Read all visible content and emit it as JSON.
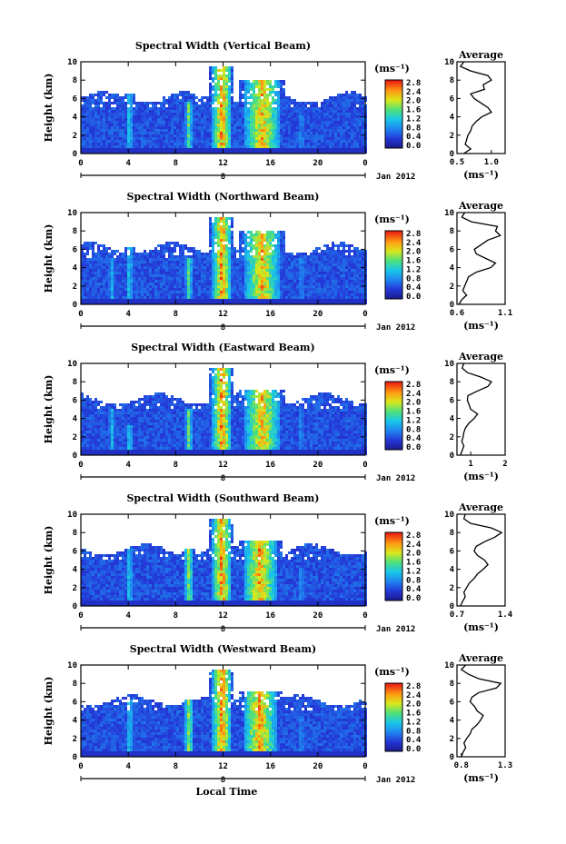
{
  "chart_data": [
    {
      "type": "heatmap",
      "title": "Spectral Width (Vertical Beam)",
      "ylabel": "Height (km)",
      "xticks": [
        "0",
        "4",
        "8",
        "12",
        "16",
        "20",
        "0"
      ],
      "ylim": [
        0,
        10
      ],
      "yticks": [
        "0",
        "2",
        "4",
        "6",
        "8",
        "10"
      ],
      "date_marker": "8",
      "date_label": "Jan 2012",
      "colorbar": {
        "unit": "(ms⁻¹)",
        "ticks": [
          "0.0",
          "0.4",
          "0.8",
          "1.2",
          "1.6",
          "2.0",
          "2.4",
          "2.8"
        ]
      },
      "profile": {
        "title": "Average",
        "xlabel": "(ms⁻¹)",
        "xticks": [
          "0.5",
          "1.0"
        ],
        "xlim": [
          0.5,
          1.2
        ],
        "heights": [
          0,
          0.5,
          1,
          1.5,
          2,
          2.5,
          3,
          3.5,
          4,
          4.5,
          5,
          5.5,
          6,
          6.5,
          7,
          7.5,
          8,
          8.5,
          9,
          9.5,
          10
        ],
        "values": [
          0.6,
          0.7,
          0.62,
          0.64,
          0.66,
          0.7,
          0.72,
          0.78,
          0.86,
          1.0,
          0.95,
          0.85,
          0.75,
          0.7,
          0.9,
          0.88,
          1.0,
          0.95,
          0.7,
          0.55,
          0.6
        ]
      },
      "activity": [
        {
          "t": 4,
          "w": 0.3,
          "top": 6.5,
          "v": 1.4
        },
        {
          "t": 9,
          "w": 0.3,
          "top": 5.5,
          "v": 1.8
        },
        {
          "t": 11.8,
          "w": 0.8,
          "top": 9.5,
          "v": 2.6
        },
        {
          "t": 15.2,
          "w": 1.5,
          "top": 8,
          "v": 2.4
        },
        {
          "t": 18.5,
          "w": 0.3,
          "top": 4,
          "v": 1.0
        }
      ]
    },
    {
      "type": "heatmap",
      "title": "Spectral Width (Northward Beam)",
      "ylabel": "Height (km)",
      "xticks": [
        "0",
        "4",
        "8",
        "12",
        "16",
        "20",
        "0"
      ],
      "ylim": [
        0,
        10
      ],
      "yticks": [
        "0",
        "2",
        "4",
        "6",
        "8",
        "10"
      ],
      "date_marker": "8",
      "date_label": "Jan 2012",
      "colorbar": {
        "unit": "(ms⁻¹)",
        "ticks": [
          "0.0",
          "0.4",
          "0.8",
          "1.2",
          "1.6",
          "2.0",
          "2.4",
          "2.8"
        ]
      },
      "profile": {
        "title": "Average",
        "xlabel": "(ms⁻¹)",
        "xticks": [
          "0.6",
          "1.1"
        ],
        "xlim": [
          0.6,
          1.1
        ],
        "heights": [
          0,
          0.5,
          1,
          1.5,
          2,
          2.5,
          3,
          3.5,
          4,
          4.5,
          5,
          5.5,
          6,
          6.5,
          7,
          7.5,
          8,
          8.5,
          9,
          9.5,
          10
        ],
        "values": [
          0.62,
          0.65,
          0.7,
          0.66,
          0.68,
          0.7,
          0.72,
          0.8,
          0.95,
          1.0,
          0.9,
          0.8,
          0.78,
          0.85,
          0.92,
          1.05,
          1.0,
          1.02,
          0.75,
          0.65,
          0.68
        ]
      },
      "activity": [
        {
          "t": 2.5,
          "w": 0.3,
          "top": 5,
          "v": 1.2
        },
        {
          "t": 4,
          "w": 0.3,
          "top": 6,
          "v": 1.4
        },
        {
          "t": 9,
          "w": 0.3,
          "top": 5,
          "v": 1.8
        },
        {
          "t": 11.8,
          "w": 0.8,
          "top": 9.5,
          "v": 2.6
        },
        {
          "t": 15.2,
          "w": 1.5,
          "top": 8,
          "v": 2.4
        },
        {
          "t": 18.5,
          "w": 0.3,
          "top": 5,
          "v": 1.0
        }
      ]
    },
    {
      "type": "heatmap",
      "title": "Spectral Width (Eastward Beam)",
      "ylabel": "Height (km)",
      "xticks": [
        "0",
        "4",
        "8",
        "12",
        "16",
        "20",
        "0"
      ],
      "ylim": [
        0,
        10
      ],
      "yticks": [
        "0",
        "2",
        "4",
        "6",
        "8",
        "10"
      ],
      "date_marker": "8",
      "date_label": "Jan 2012",
      "colorbar": {
        "unit": "(ms⁻¹)",
        "ticks": [
          "0.0",
          "0.4",
          "0.8",
          "1.2",
          "1.6",
          "2.0",
          "2.4",
          "2.8"
        ]
      },
      "profile": {
        "title": "Average",
        "xlabel": "(ms⁻¹)",
        "xticks": [
          "1",
          "2"
        ],
        "xlim": [
          0.6,
          2.0
        ],
        "heights": [
          0,
          0.5,
          1,
          1.5,
          2,
          2.5,
          3,
          3.5,
          4,
          4.5,
          5,
          5.5,
          6,
          6.5,
          7,
          7.5,
          8,
          8.5,
          9,
          9.5,
          10
        ],
        "values": [
          0.7,
          0.75,
          0.8,
          0.74,
          0.78,
          0.8,
          0.85,
          0.95,
          1.1,
          1.2,
          1.0,
          0.95,
          0.9,
          0.92,
          1.2,
          1.5,
          1.6,
          1.3,
          0.9,
          0.75,
          0.8
        ]
      },
      "activity": [
        {
          "t": 2.5,
          "w": 0.3,
          "top": 5,
          "v": 1.2
        },
        {
          "t": 4,
          "w": 0.3,
          "top": 3,
          "v": 1.4
        },
        {
          "t": 9,
          "w": 0.3,
          "top": 5,
          "v": 1.8
        },
        {
          "t": 11.8,
          "w": 0.8,
          "top": 9.5,
          "v": 2.6
        },
        {
          "t": 15.2,
          "w": 1.5,
          "top": 7,
          "v": 2.4
        },
        {
          "t": 18.5,
          "w": 0.3,
          "top": 5,
          "v": 1.0
        }
      ]
    },
    {
      "type": "heatmap",
      "title": "Spectral Width (Southward Beam)",
      "ylabel": "Height (km)",
      "xticks": [
        "0",
        "4",
        "8",
        "12",
        "16",
        "20",
        "0"
      ],
      "ylim": [
        0,
        10
      ],
      "yticks": [
        "0",
        "2",
        "4",
        "6",
        "8",
        "10"
      ],
      "date_marker": "8",
      "date_label": "Jan 2012",
      "colorbar": {
        "unit": "(ms⁻¹)",
        "ticks": [
          "0.0",
          "0.4",
          "0.8",
          "1.2",
          "1.6",
          "2.0",
          "2.4",
          "2.8"
        ]
      },
      "profile": {
        "title": "Average",
        "xlabel": "(ms⁻¹)",
        "xticks": [
          "0.7",
          "1.4"
        ],
        "xlim": [
          0.7,
          1.4
        ],
        "heights": [
          0,
          0.5,
          1,
          1.5,
          2,
          2.5,
          3,
          3.5,
          4,
          4.5,
          5,
          5.5,
          6,
          6.5,
          7,
          7.5,
          8,
          8.5,
          9,
          9.5,
          10
        ],
        "values": [
          0.75,
          0.78,
          0.82,
          0.8,
          0.84,
          0.88,
          0.95,
          1.0,
          1.08,
          1.15,
          1.1,
          1.0,
          0.95,
          0.98,
          1.1,
          1.25,
          1.35,
          1.2,
          0.9,
          0.8,
          0.82
        ]
      },
      "activity": [
        {
          "t": 4,
          "w": 0.3,
          "top": 6,
          "v": 1.4
        },
        {
          "t": 9,
          "w": 0.4,
          "top": 6,
          "v": 1.9
        },
        {
          "t": 11.8,
          "w": 0.8,
          "top": 9.5,
          "v": 2.6
        },
        {
          "t": 15,
          "w": 1.4,
          "top": 7,
          "v": 2.5
        },
        {
          "t": 18.5,
          "w": 0.3,
          "top": 4,
          "v": 1.0
        }
      ]
    },
    {
      "type": "heatmap",
      "title": "Spectral Width (Westward Beam)",
      "ylabel": "Height (km)",
      "xticks": [
        "0",
        "4",
        "8",
        "12",
        "16",
        "20",
        "0"
      ],
      "ylim": [
        0,
        10
      ],
      "yticks": [
        "0",
        "2",
        "4",
        "6",
        "8",
        "10"
      ],
      "date_marker": "8",
      "date_label": "Jan 2012",
      "xlabel": "Local Time",
      "colorbar": {
        "unit": "(ms⁻¹)",
        "ticks": [
          "0.0",
          "0.4",
          "0.8",
          "1.2",
          "1.6",
          "2.0",
          "2.4",
          "2.8"
        ]
      },
      "profile": {
        "title": "Average",
        "xlabel": "(ms⁻¹)",
        "xticks": [
          "0.8",
          "1.3"
        ],
        "xlim": [
          0.75,
          1.3
        ],
        "heights": [
          0,
          0.5,
          1,
          1.5,
          2,
          2.5,
          3,
          3.5,
          4,
          4.5,
          5,
          5.5,
          6,
          6.5,
          7,
          7.5,
          8,
          8.5,
          9,
          9.5,
          10
        ],
        "values": [
          0.8,
          0.82,
          0.85,
          0.83,
          0.86,
          0.9,
          0.92,
          0.98,
          1.02,
          1.05,
          0.98,
          0.95,
          0.9,
          0.92,
          1.0,
          1.2,
          1.25,
          1.0,
          0.88,
          0.8,
          0.85
        ]
      },
      "activity": [
        {
          "t": 4,
          "w": 0.3,
          "top": 6,
          "v": 1.4
        },
        {
          "t": 9,
          "w": 0.4,
          "top": 6,
          "v": 1.9
        },
        {
          "t": 11.8,
          "w": 0.8,
          "top": 9.5,
          "v": 2.6
        },
        {
          "t": 15,
          "w": 1.4,
          "top": 7,
          "v": 2.5
        },
        {
          "t": 18.5,
          "w": 0.3,
          "top": 4,
          "v": 1.0
        }
      ]
    }
  ]
}
